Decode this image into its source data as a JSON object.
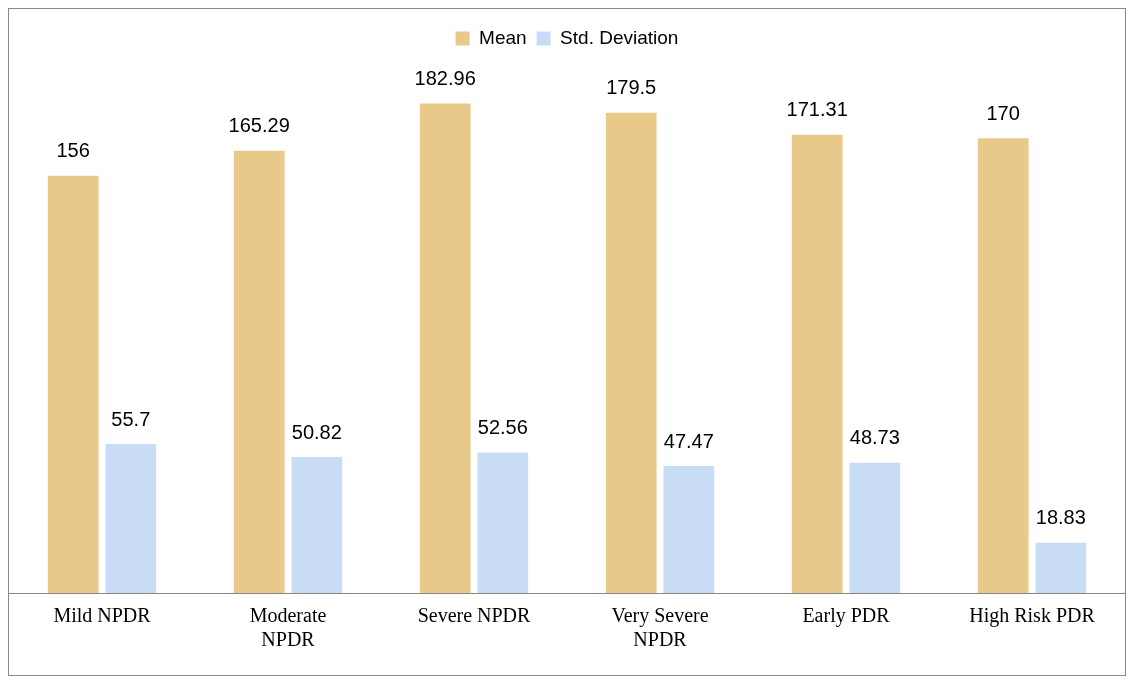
{
  "chart_data": {
    "type": "bar",
    "categories": [
      "Mild NPDR",
      "Moderate NPDR",
      "Severe NPDR",
      "Very Severe NPDR",
      "Early PDR",
      "High Risk PDR"
    ],
    "series": [
      {
        "name": "Mean",
        "color": "#e8c98a",
        "values": [
          156,
          165.29,
          182.96,
          179.5,
          171.31,
          170
        ]
      },
      {
        "name": "Std. Deviation",
        "color": "#c8dcf5",
        "values": [
          55.7,
          50.82,
          52.56,
          47.47,
          48.73,
          18.83
        ]
      }
    ],
    "data_labels": true,
    "legend": "top",
    "grid": false
  }
}
